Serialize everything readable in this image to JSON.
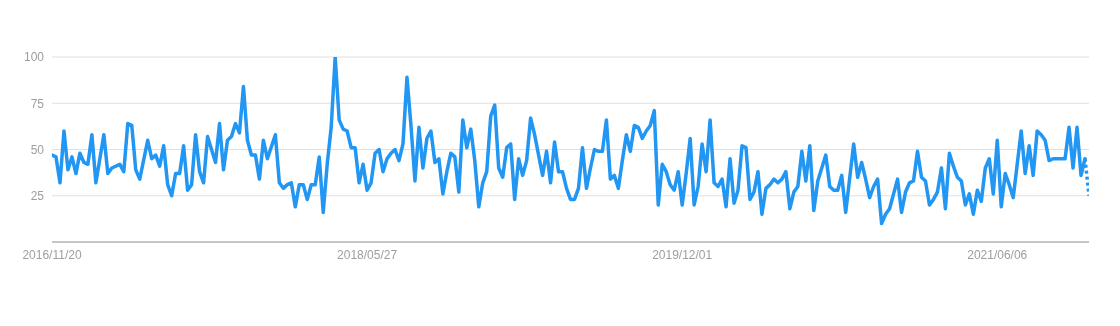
{
  "chart_data": {
    "type": "line",
    "xlim": [
      "2016-11-20",
      "2021-11-14"
    ],
    "xticks": [
      {
        "value": "2016-11-20",
        "label": "2016/11/20"
      },
      {
        "value": "2018-05-27",
        "label": "2018/05/27"
      },
      {
        "value": "2019-12-01",
        "label": "2019/12/01"
      },
      {
        "value": "2021-06-06",
        "label": "2021/06/06"
      }
    ],
    "ylim": [
      0,
      100
    ],
    "yticks": [
      25,
      50,
      75,
      100
    ],
    "grid": "y",
    "marker": "none",
    "series": [
      {
        "color": "#2196f3",
        "line_style": "solid",
        "x": [
          "2016-11-20",
          "2016-11-27",
          "2016-12-04",
          "2016-12-11",
          "2016-12-18",
          "2016-12-25",
          "2017-01-01",
          "2017-01-08",
          "2017-01-15",
          "2017-01-22",
          "2017-01-29",
          "2017-02-05",
          "2017-02-19",
          "2017-02-26",
          "2017-03-05",
          "2017-03-19",
          "2017-03-26",
          "2017-04-02",
          "2017-04-09",
          "2017-04-16",
          "2017-04-23",
          "2017-05-07",
          "2017-05-14",
          "2017-05-21",
          "2017-05-28",
          "2017-06-04",
          "2017-06-11",
          "2017-06-18",
          "2017-06-25",
          "2017-07-02",
          "2017-07-09",
          "2017-07-16",
          "2017-07-23",
          "2017-07-30",
          "2017-08-06",
          "2017-08-13",
          "2017-08-20",
          "2017-09-03",
          "2017-09-10",
          "2017-09-17",
          "2017-09-24",
          "2017-10-01",
          "2017-10-08",
          "2017-10-15",
          "2017-10-22",
          "2017-10-29",
          "2017-11-05",
          "2017-11-12",
          "2017-11-19",
          "2017-11-26",
          "2017-12-03",
          "2017-12-17",
          "2017-12-24",
          "2017-12-31",
          "2018-01-07",
          "2018-01-14",
          "2018-01-21",
          "2018-01-28",
          "2018-02-04",
          "2018-02-11",
          "2018-02-18",
          "2018-02-25",
          "2018-03-04",
          "2018-03-11",
          "2018-03-18",
          "2018-03-25",
          "2018-04-01",
          "2018-04-08",
          "2018-04-15",
          "2018-04-22",
          "2018-04-29",
          "2018-05-06",
          "2018-05-13",
          "2018-05-20",
          "2018-05-27",
          "2018-06-03",
          "2018-06-10",
          "2018-06-17",
          "2018-06-24",
          "2018-07-01",
          "2018-07-08",
          "2018-07-15",
          "2018-07-22",
          "2018-07-29",
          "2018-08-05",
          "2018-08-12",
          "2018-08-19",
          "2018-08-26",
          "2018-09-02",
          "2018-09-09",
          "2018-09-16",
          "2018-09-23",
          "2018-09-30",
          "2018-10-07",
          "2018-10-14",
          "2018-10-21",
          "2018-10-28",
          "2018-11-04",
          "2018-11-11",
          "2018-11-18",
          "2018-11-25",
          "2018-12-02",
          "2018-12-09",
          "2018-12-16",
          "2018-12-23",
          "2018-12-30",
          "2019-01-06",
          "2019-01-13",
          "2019-01-20",
          "2019-01-27",
          "2019-02-03",
          "2019-02-10",
          "2019-02-17",
          "2019-02-24",
          "2019-03-03",
          "2019-03-10",
          "2019-03-17",
          "2019-03-24",
          "2019-03-31",
          "2019-04-07",
          "2019-04-14",
          "2019-04-21",
          "2019-04-28",
          "2019-05-05",
          "2019-05-12",
          "2019-05-19",
          "2019-05-26",
          "2019-06-02",
          "2019-06-09",
          "2019-06-16",
          "2019-06-23",
          "2019-06-30",
          "2019-07-07",
          "2019-07-14",
          "2019-07-21",
          "2019-07-28",
          "2019-08-04",
          "2019-08-11",
          "2019-08-18",
          "2019-08-25",
          "2019-09-01",
          "2019-09-08",
          "2019-09-15",
          "2019-09-22",
          "2019-09-29",
          "2019-10-06",
          "2019-10-13",
          "2019-10-20",
          "2019-10-27",
          "2019-11-03",
          "2019-11-10",
          "2019-11-17",
          "2019-11-24",
          "2019-12-01",
          "2019-12-08",
          "2019-12-15",
          "2019-12-22",
          "2019-12-29",
          "2020-01-05",
          "2020-01-12",
          "2020-01-19",
          "2020-01-26",
          "2020-02-02",
          "2020-02-09",
          "2020-02-16",
          "2020-02-23",
          "2020-03-01",
          "2020-03-08",
          "2020-03-15",
          "2020-03-22",
          "2020-03-29",
          "2020-04-05",
          "2020-04-12",
          "2020-04-19",
          "2020-04-26",
          "2020-05-03",
          "2020-05-10",
          "2020-05-17",
          "2020-05-24",
          "2020-05-31",
          "2020-06-07",
          "2020-06-14",
          "2020-06-21",
          "2020-06-28",
          "2020-07-05",
          "2020-07-12",
          "2020-07-19",
          "2020-07-26",
          "2020-08-02",
          "2020-08-09",
          "2020-08-16",
          "2020-08-23",
          "2020-08-30",
          "2020-09-06",
          "2020-09-13",
          "2020-09-27",
          "2020-10-04",
          "2020-10-11",
          "2020-10-18",
          "2020-10-25",
          "2020-11-01",
          "2020-11-08",
          "2020-11-15",
          "2020-11-22",
          "2020-11-29",
          "2020-12-13",
          "2020-12-20",
          "2020-12-27",
          "2021-01-03",
          "2021-01-10",
          "2021-01-17",
          "2021-01-24",
          "2021-01-31",
          "2021-02-07",
          "2021-02-14",
          "2021-02-21",
          "2021-02-28",
          "2021-03-07",
          "2021-03-14",
          "2021-03-21",
          "2021-03-28",
          "2021-04-04",
          "2021-04-11",
          "2021-04-18",
          "2021-04-25",
          "2021-05-02",
          "2021-05-09",
          "2021-05-16",
          "2021-05-23",
          "2021-05-30",
          "2021-06-06",
          "2021-06-13",
          "2021-06-20",
          "2021-06-27",
          "2021-07-04",
          "2021-07-11",
          "2021-07-18",
          "2021-07-25",
          "2021-08-01",
          "2021-08-08",
          "2021-08-15",
          "2021-08-22",
          "2021-08-29",
          "2021-09-05",
          "2021-09-12",
          "2021-09-26",
          "2021-10-03",
          "2021-10-10",
          "2021-10-17",
          "2021-10-24",
          "2021-10-31",
          "2021-11-07"
        ],
        "values": [
          47,
          46,
          32,
          60,
          39,
          46,
          37,
          48,
          43,
          42,
          58,
          32,
          58,
          37,
          40,
          42,
          38,
          64,
          63,
          39,
          34,
          55,
          45,
          47,
          41,
          52,
          31,
          25,
          37,
          37,
          52,
          28,
          31,
          58,
          38,
          32,
          57,
          43,
          64,
          39,
          55,
          57,
          64,
          59,
          84,
          55,
          47,
          47,
          34,
          55,
          45,
          58,
          32,
          29,
          31,
          32,
          19,
          31,
          31,
          23,
          31,
          31,
          46,
          16,
          42,
          62,
          100,
          66,
          61,
          60,
          51,
          51,
          32,
          42,
          28,
          32,
          48,
          50,
          38,
          45,
          48,
          50,
          44,
          53,
          89,
          63,
          33,
          62,
          40,
          56,
          60,
          43,
          45,
          26,
          38,
          48,
          46,
          27,
          66,
          51,
          61,
          44,
          19,
          32,
          38,
          68,
          74,
          40,
          35,
          51,
          53,
          23,
          45,
          36,
          44,
          67,
          58,
          47,
          36,
          49,
          32,
          54,
          38,
          38,
          29,
          23,
          23,
          29,
          51,
          29,
          40,
          50,
          49,
          49,
          66,
          34,
          36,
          29,
          44,
          58,
          49,
          63,
          62,
          56,
          60,
          63,
          71,
          20,
          42,
          38,
          31,
          28,
          38,
          20,
          37,
          56,
          20,
          30,
          53,
          38,
          66,
          32,
          30,
          34,
          19,
          45,
          21,
          28,
          52,
          51,
          23,
          27,
          38,
          15,
          29,
          31,
          34,
          32,
          34,
          38,
          18,
          27,
          30,
          49,
          33,
          52,
          17,
          33,
          40,
          47,
          30,
          28,
          28,
          36,
          16,
          53,
          35,
          43,
          34,
          24,
          30,
          34,
          10,
          15,
          18,
          34,
          16,
          27,
          32,
          33,
          49,
          35,
          33,
          20,
          23,
          27,
          40,
          18,
          48,
          41,
          35,
          33,
          20,
          26,
          15,
          28,
          22,
          40,
          45,
          26,
          55,
          19,
          37,
          31,
          24,
          42,
          60,
          37,
          52,
          36,
          60,
          58,
          55,
          44,
          45,
          45,
          45,
          62,
          40,
          62,
          36,
          45
        ]
      },
      {
        "color": "#2196f3",
        "line_style": "dotted",
        "x": [
          "2021-11-07",
          "2021-11-14"
        ],
        "values": [
          45,
          25
        ]
      }
    ]
  }
}
